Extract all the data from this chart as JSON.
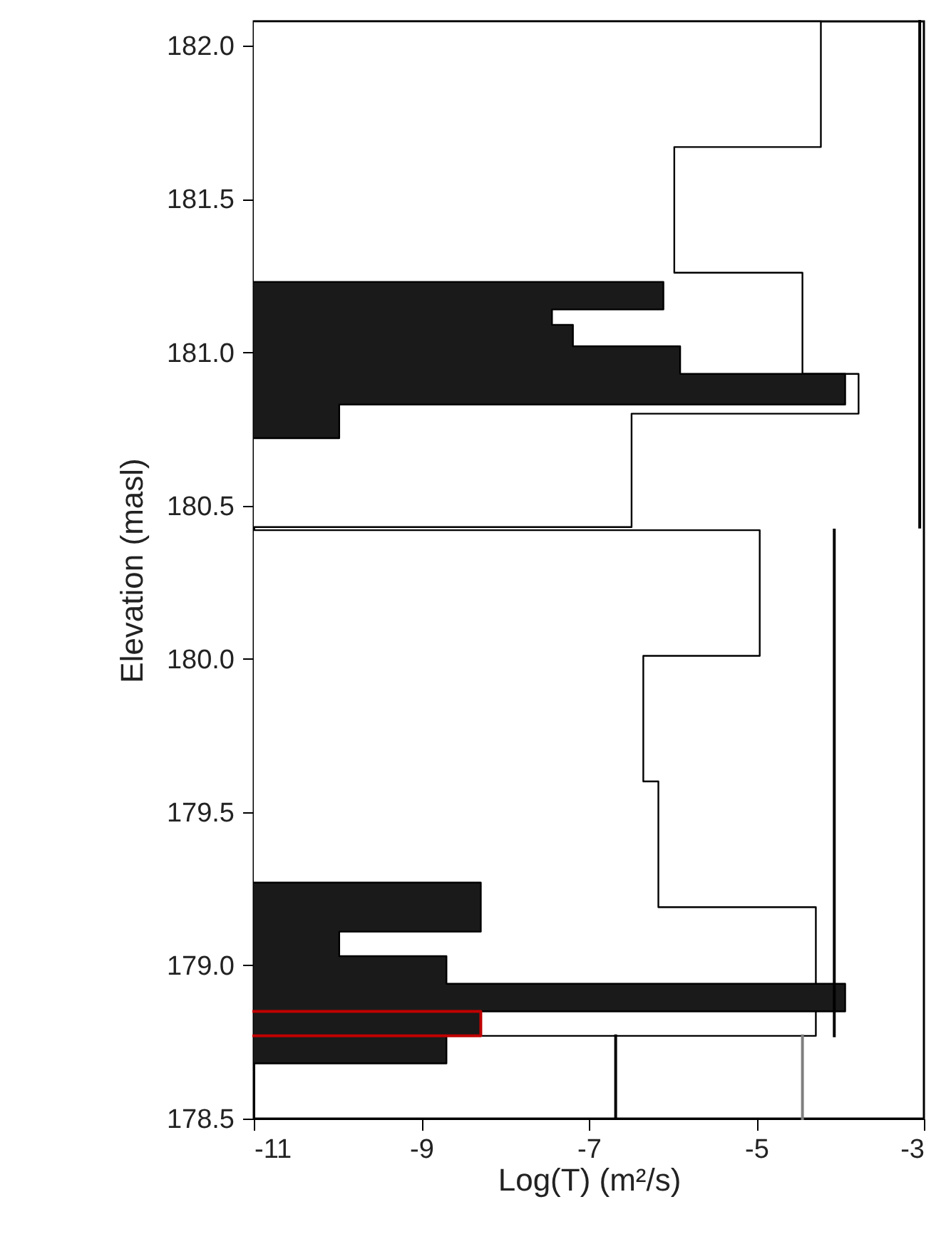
{
  "chart_data": {
    "type": "area",
    "orientation": "horizontal",
    "xlabel": "Log(T) (m²/s)",
    "ylabel": "Elevation (masl)",
    "xlim": [
      -11,
      -3
    ],
    "xticks": [
      -11,
      -9,
      -7,
      -5,
      -3
    ],
    "ylim": [
      178.5,
      182.08
    ],
    "yticks": [
      {
        "value": 178.5,
        "label": "178.5"
      },
      {
        "value": 179,
        "label": "179.0"
      },
      {
        "value": 179.5,
        "label": "179.5"
      },
      {
        "value": 180,
        "label": "180.0"
      },
      {
        "value": 180.5,
        "label": "180.5"
      },
      {
        "value": 181,
        "label": "181.0"
      },
      {
        "value": 181.5,
        "label": "181.5"
      },
      {
        "value": 182,
        "label": "182.0"
      }
    ],
    "series": [
      {
        "color": "#ffffff",
        "values": [
          -11,
          -4.23,
          -4.23,
          -5.98,
          -5.98,
          -4.45,
          -4.45,
          -3.78,
          -3.78,
          -6.49,
          -6.49,
          -11
        ],
        "x": [
          182.08,
          182.08,
          181.67,
          181.67,
          181.26,
          181.26,
          180.93,
          180.93,
          180.8,
          180.8,
          180.43,
          180.43
        ]
      },
      {
        "color": "#ffffff",
        "values": [
          -11,
          -4.96,
          -4.96,
          -6.35,
          -6.35,
          -6.17,
          -6.17,
          -4.29,
          -4.29,
          -11
        ],
        "x": [
          180.42,
          180.42,
          180.01,
          180.01,
          179.6,
          179.6,
          179.19,
          179.19,
          178.77,
          178.77
        ]
      },
      {
        "color": "#1a1a1a",
        "values": [
          -11,
          -6.11,
          -6.11,
          -7.44,
          -7.44,
          -7.19,
          -7.19,
          -5.91,
          -5.91,
          -3.94,
          -3.94,
          -9.98,
          -9.98,
          -11
        ],
        "x": [
          181.23,
          181.23,
          181.14,
          181.14,
          181.09,
          181.09,
          181.02,
          181.02,
          180.93,
          180.93,
          180.83,
          180.83,
          180.72,
          180.72
        ]
      },
      {
        "color": "#1a1a1a",
        "values": [
          -11,
          -8.29,
          -8.29,
          -9.98,
          -9.98,
          -8.7,
          -8.7,
          -3.94,
          -3.94,
          -8.29,
          -8.29,
          -8.7,
          -8.7,
          -11
        ],
        "x": [
          179.27,
          179.27,
          179.11,
          179.11,
          179.03,
          179.03,
          178.94,
          178.94,
          178.85,
          178.85,
          178.77,
          178.77,
          178.68,
          178.68
        ]
      },
      {
        "type": "line",
        "color": "#000000",
        "values": [
          -3.05,
          -3.05
        ],
        "x": [
          182.08,
          180.43
        ]
      },
      {
        "type": "line",
        "color": "#000000",
        "values": [
          -4.07,
          -4.07
        ],
        "x": [
          180.42,
          178.77
        ]
      },
      {
        "type": "line",
        "color": "#000000",
        "values": [
          -6.68,
          -6.68
        ],
        "x": [
          178.77,
          178.5
        ]
      },
      {
        "type": "line",
        "color": "#808080",
        "values": [
          -4.45,
          -4.45
        ],
        "x": [
          178.77,
          178.5
        ]
      },
      {
        "type": "line",
        "color": "#c00000",
        "values": [
          -11,
          -8.29,
          -8.29,
          -11
        ],
        "x": [
          178.85,
          178.85,
          178.77,
          178.77
        ]
      }
    ]
  }
}
